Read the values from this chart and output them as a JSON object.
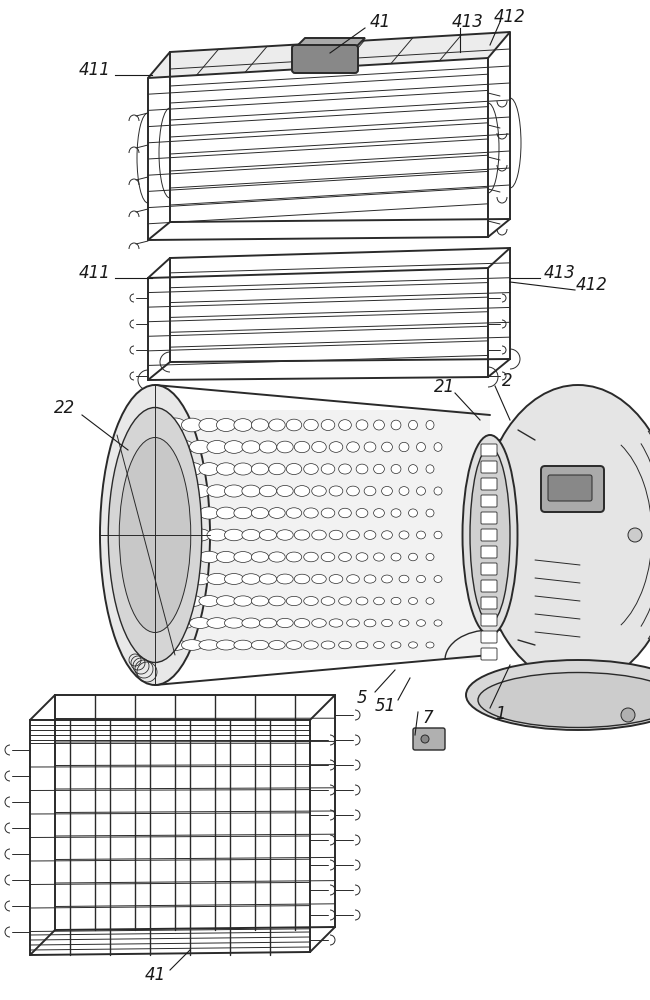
{
  "bg_color": "#ffffff",
  "line_color": "#2a2a2a",
  "label_color": "#1a1a1a",
  "figsize": [
    6.5,
    10.0
  ],
  "dpi": 100
}
